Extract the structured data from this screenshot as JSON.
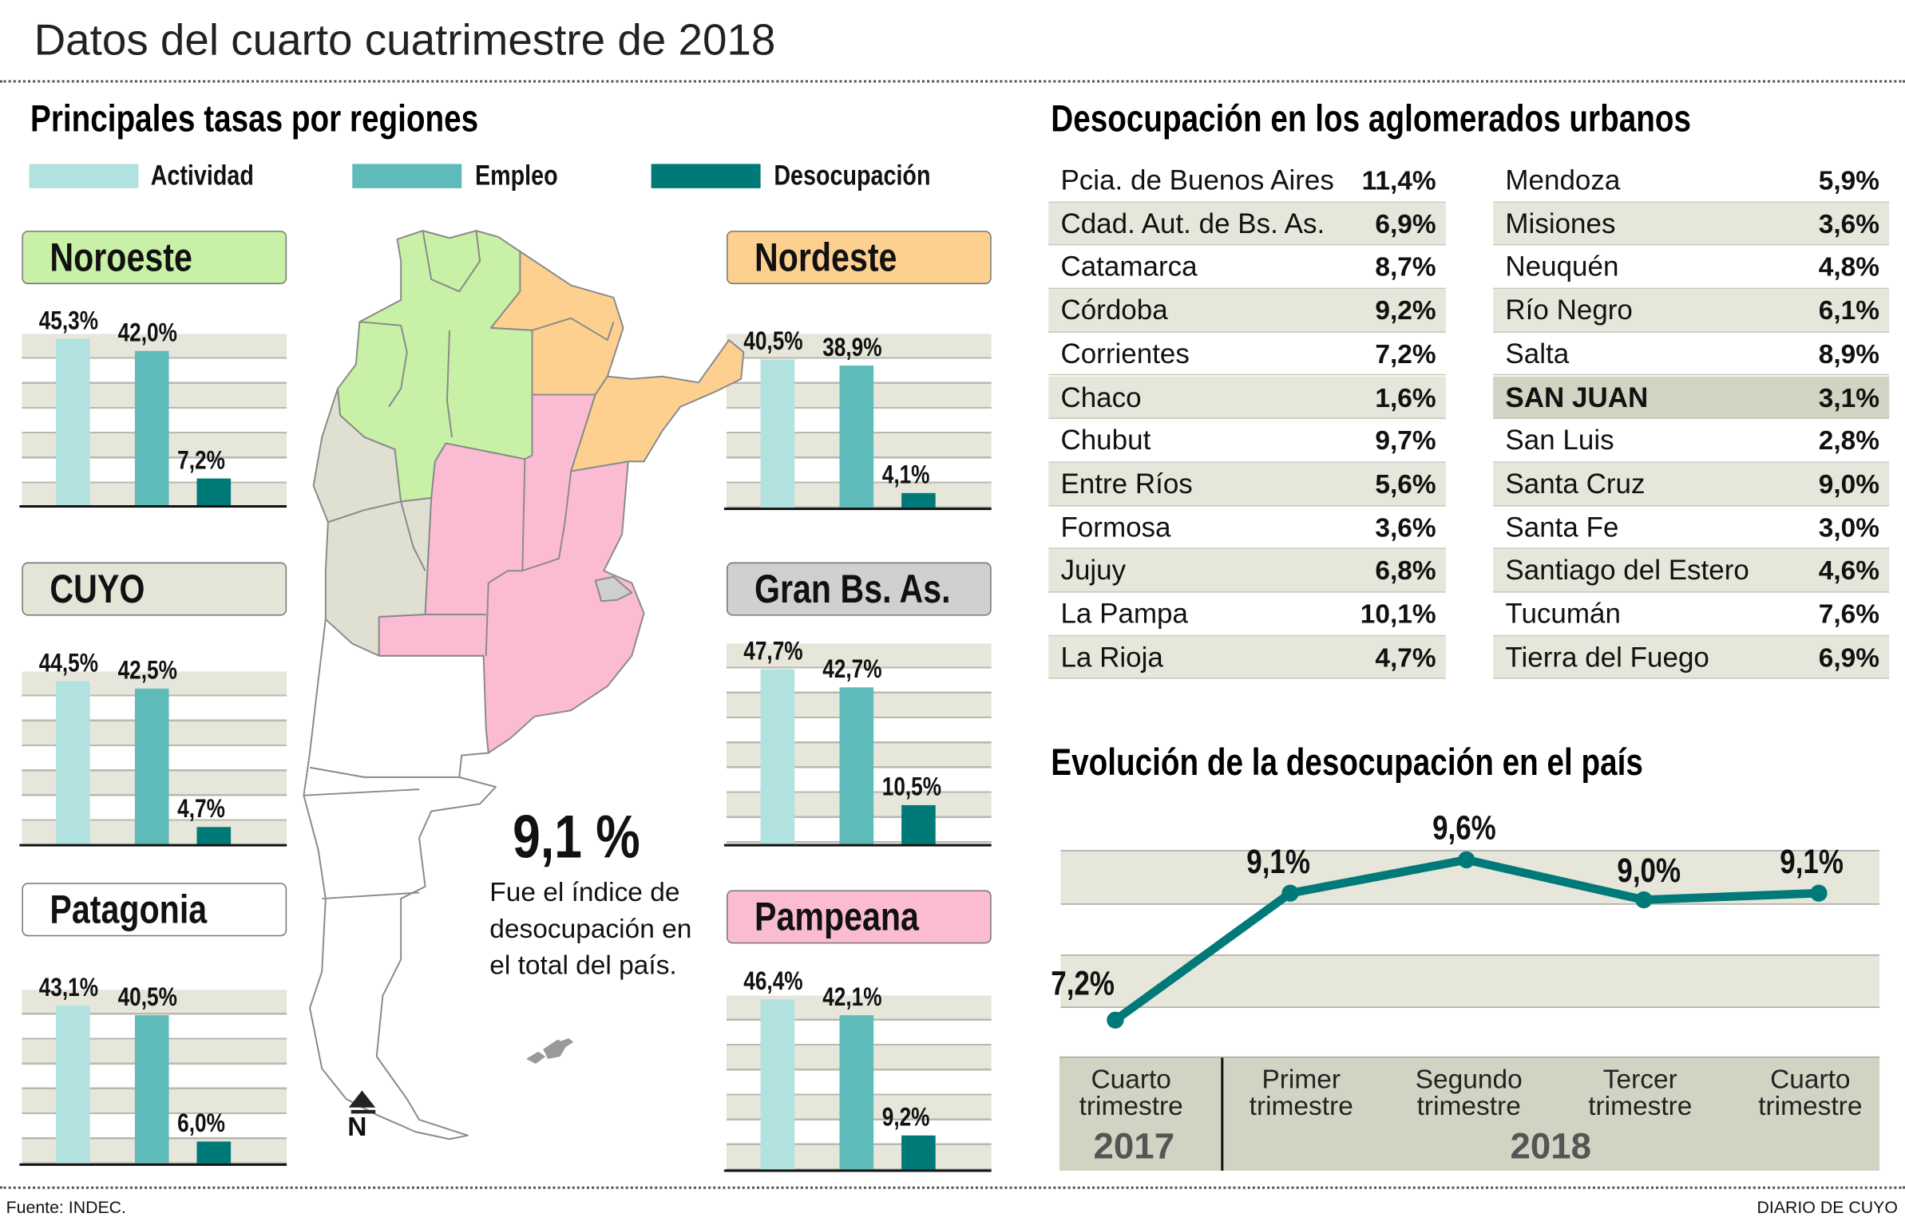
{
  "header": {
    "title": "Datos del cuarto cuatrimestre de 2018"
  },
  "regions_section": {
    "title": "Principales tasas por regiones",
    "legend": [
      {
        "label": "Actividad",
        "color": "#b2e2e0"
      },
      {
        "label": "Empleo",
        "color": "#5fbbba"
      },
      {
        "label": "Desocupación",
        "color": "#007a78"
      }
    ]
  },
  "chart_data": [
    {
      "type": "bar",
      "title": "Noroeste",
      "header_color": "#c8f0a6",
      "categories": [
        "Actividad",
        "Empleo",
        "Desocupación"
      ],
      "values": [
        45.3,
        42.0,
        7.2
      ],
      "labels": [
        "45,3%",
        "42,0%",
        "7,2%"
      ],
      "ylim": [
        0,
        47
      ]
    },
    {
      "type": "bar",
      "title": "CUYO",
      "header_color": "#e4e4d7",
      "categories": [
        "Actividad",
        "Empleo",
        "Desocupación"
      ],
      "values": [
        44.5,
        42.5,
        4.7
      ],
      "labels": [
        "44,5%",
        "42,5%",
        "4,7%"
      ],
      "ylim": [
        0,
        47
      ]
    },
    {
      "type": "bar",
      "title": "Patagonia",
      "header_color": "#ffffff",
      "categories": [
        "Actividad",
        "Empleo",
        "Desocupación"
      ],
      "values": [
        43.1,
        40.5,
        6.0
      ],
      "labels": [
        "43,1%",
        "40,5%",
        "6,0%"
      ],
      "ylim": [
        0,
        47
      ]
    },
    {
      "type": "bar",
      "title": "Nordeste",
      "header_color": "#fdd08f",
      "categories": [
        "Actividad",
        "Empleo",
        "Desocupación"
      ],
      "values": [
        40.5,
        38.9,
        4.1
      ],
      "labels": [
        "40,5%",
        "38,9%",
        "4,1%"
      ],
      "ylim": [
        0,
        47
      ]
    },
    {
      "type": "bar",
      "title": "Gran Bs. As.",
      "header_color": "#d0d0d0",
      "categories": [
        "Actividad",
        "Empleo",
        "Desocupación"
      ],
      "values": [
        47.7,
        42.7,
        10.5
      ],
      "labels": [
        "47,7%",
        "42,7%",
        "10,5%"
      ],
      "ylim": [
        0,
        49
      ]
    },
    {
      "type": "bar",
      "title": "Pampeana",
      "header_color": "#fbbcd3",
      "categories": [
        "Actividad",
        "Empleo",
        "Desocupación"
      ],
      "values": [
        46.4,
        42.1,
        9.2
      ],
      "labels": [
        "46,4%",
        "42,1%",
        "9,2%"
      ],
      "ylim": [
        0,
        47
      ]
    },
    {
      "type": "line",
      "title": "Evolución de la desocupación en el país",
      "categories": [
        "Cuarto trimestre",
        "Primer trimestre",
        "Segundo trimestre",
        "Tercer trimestre",
        "Cuarto trimestre"
      ],
      "category_lines": [
        [
          "Cuarto",
          "trimestre"
        ],
        [
          "Primer",
          "trimestre"
        ],
        [
          "Segundo",
          "trimestre"
        ],
        [
          "Tercer",
          "trimestre"
        ],
        [
          "Cuarto",
          "trimestre"
        ]
      ],
      "years": [
        "2017",
        "2018"
      ],
      "values": [
        7.2,
        9.1,
        9.6,
        9.0,
        9.1
      ],
      "labels": [
        "7,2%",
        "9,1%",
        "9,6%",
        "9,0%",
        "9,1%"
      ],
      "color": "#007a78"
    }
  ],
  "map": {
    "headline": "9,1 %",
    "caption": [
      "Fue el índice de",
      "desocupación en",
      "el total del país."
    ],
    "colors": {
      "noroeste": "#c8f0a6",
      "nordeste": "#fdd08f",
      "pampeana": "#fbbcd3",
      "cuyo": "#e0e0d2",
      "gba": "#cfcfcf",
      "patagonia": "#ffffff"
    },
    "north_label": "N"
  },
  "table": {
    "title": "Desocupación en los aglomerados urbanos",
    "left": [
      {
        "name": "Pcia. de Buenos Aires",
        "value": "11,4%"
      },
      {
        "name": "Cdad. Aut. de Bs. As.",
        "value": "6,9%"
      },
      {
        "name": "Catamarca",
        "value": "8,7%"
      },
      {
        "name": "Córdoba",
        "value": "9,2%"
      },
      {
        "name": "Corrientes",
        "value": "7,2%"
      },
      {
        "name": "Chaco",
        "value": "1,6%"
      },
      {
        "name": "Chubut",
        "value": "9,7%"
      },
      {
        "name": "Entre Ríos",
        "value": "5,6%"
      },
      {
        "name": "Formosa",
        "value": "3,6%"
      },
      {
        "name": "Jujuy",
        "value": "6,8%"
      },
      {
        "name": "La Pampa",
        "value": "10,1%"
      },
      {
        "name": "La Rioja",
        "value": "4,7%"
      }
    ],
    "right": [
      {
        "name": "Mendoza",
        "value": "5,9%"
      },
      {
        "name": "Misiones",
        "value": "3,6%"
      },
      {
        "name": "Neuquén",
        "value": "4,8%"
      },
      {
        "name": "Río Negro",
        "value": "6,1%"
      },
      {
        "name": "Salta",
        "value": "8,9%"
      },
      {
        "name": "SAN JUAN",
        "value": "3,1%",
        "highlight": true
      },
      {
        "name": "San Luis",
        "value": "2,8%"
      },
      {
        "name": "Santa Cruz",
        "value": "9,0%"
      },
      {
        "name": "Santa Fe",
        "value": "3,0%"
      },
      {
        "name": "Santiago del Estero",
        "value": "4,6%"
      },
      {
        "name": "Tucumán",
        "value": "7,6%"
      },
      {
        "name": "Tierra del Fuego",
        "value": "6,9%"
      }
    ]
  },
  "footer": {
    "source": "Fuente: INDEC.",
    "brand": "DIARIO DE CUYO"
  }
}
